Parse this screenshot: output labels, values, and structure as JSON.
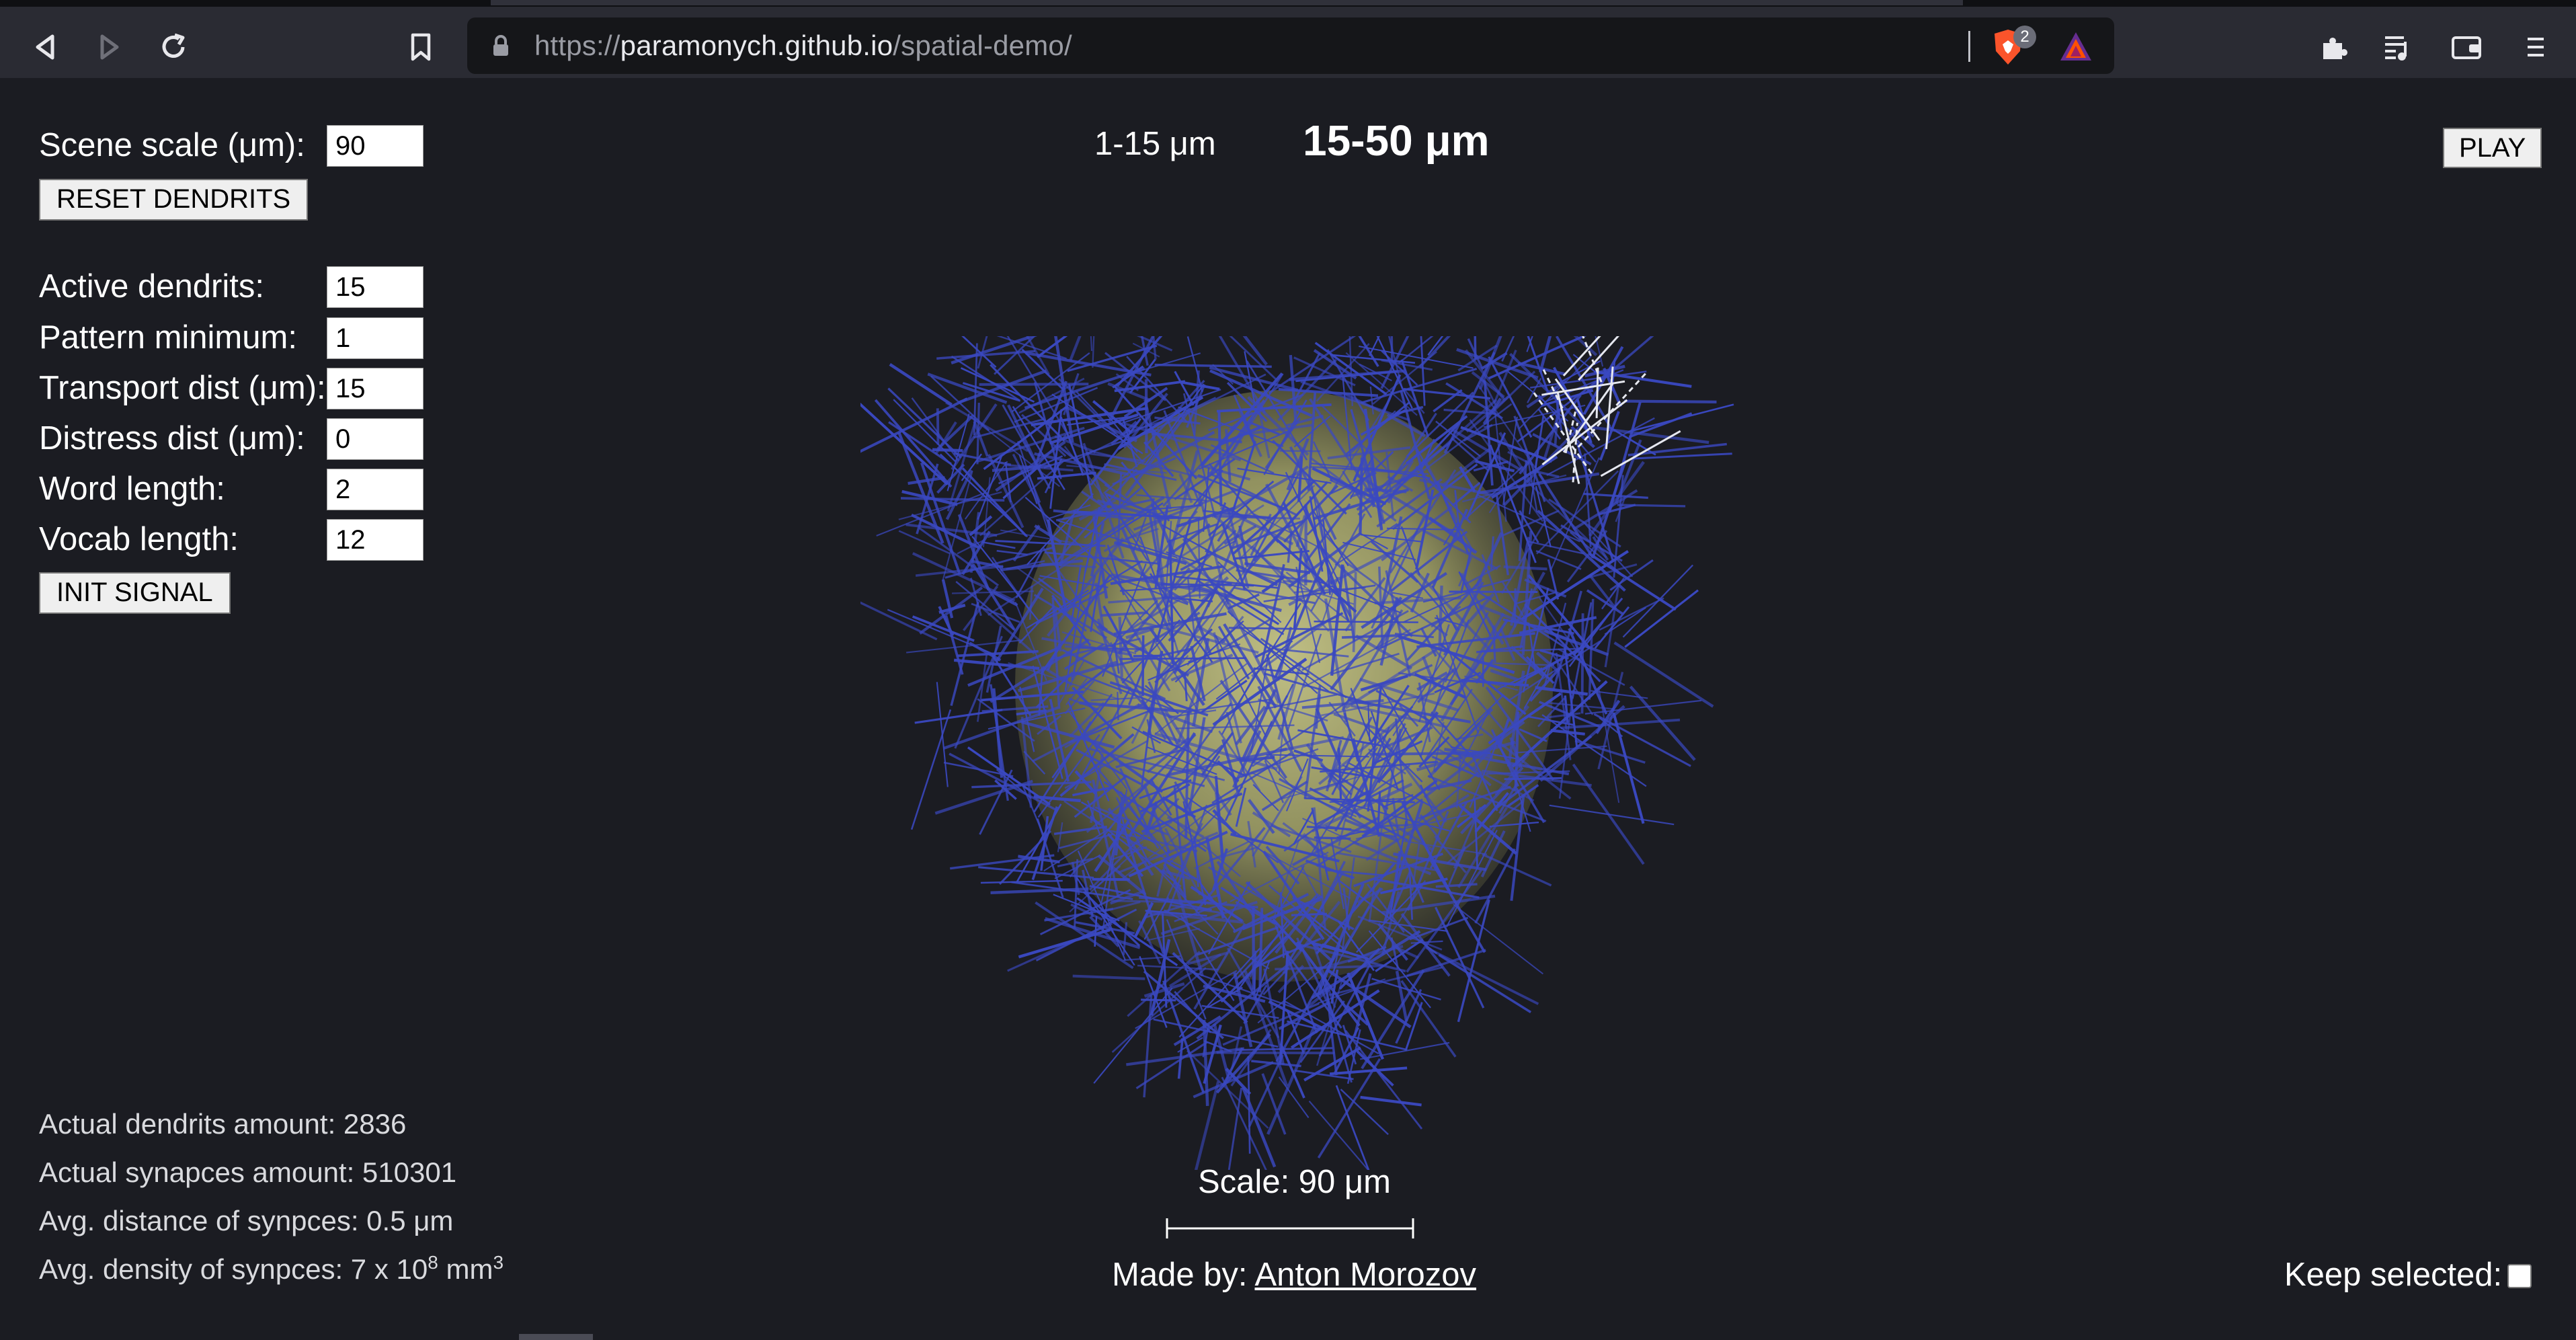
{
  "browser": {
    "url_prefix": "https://",
    "url_host": "paramonych.github.io",
    "url_path": "/spatial-demo/",
    "shield_count": "2",
    "colors": {
      "chrome_bg": "#2a2b33",
      "url_bg": "#151619",
      "brave_orange": "#fb542b"
    }
  },
  "controls": {
    "scene_scale_label": "Scene scale (μm):",
    "scene_scale_value": "90",
    "reset_button": "RESET DENDRITS",
    "active_dendrits_label": "Active dendrits:",
    "active_dendrits_value": "15",
    "pattern_minimum_label": "Pattern minimum:",
    "pattern_minimum_value": "1",
    "transport_dist_label": "Transport dist (μm):",
    "transport_dist_value": "15",
    "distress_dist_label": "Distress dist (μm):",
    "distress_dist_value": "0",
    "word_length_label": "Word length:",
    "word_length_value": "2",
    "vocab_length_label": "Vocab length:",
    "vocab_length_value": "12",
    "init_button": "INIT SIGNAL",
    "play_button": "PLAY"
  },
  "scale_options": {
    "small": "1-15 μm",
    "large": "15-50 μm",
    "selected": "15-50 μm"
  },
  "stats": {
    "dendrits": "Actual dendrits amount: 2836",
    "synapses": "Actual synapces amount: 510301",
    "avg_distance": "Avg. distance of synpces: 0.5 μm",
    "density_prefix": "Avg. density of synpces: 7 x 10",
    "density_exp": "8",
    "density_unit": " mm",
    "density_unit_exp": "3"
  },
  "scene": {
    "scale_label": "Scale: 90 μm",
    "dendrite_color": "#3a48c0",
    "core_color": "#b9b870",
    "active_color": "#e6e8f0"
  },
  "footer": {
    "made_by_prefix": "Made by: ",
    "author": "Anton Morozov",
    "keep_selected": "Keep selected:"
  }
}
